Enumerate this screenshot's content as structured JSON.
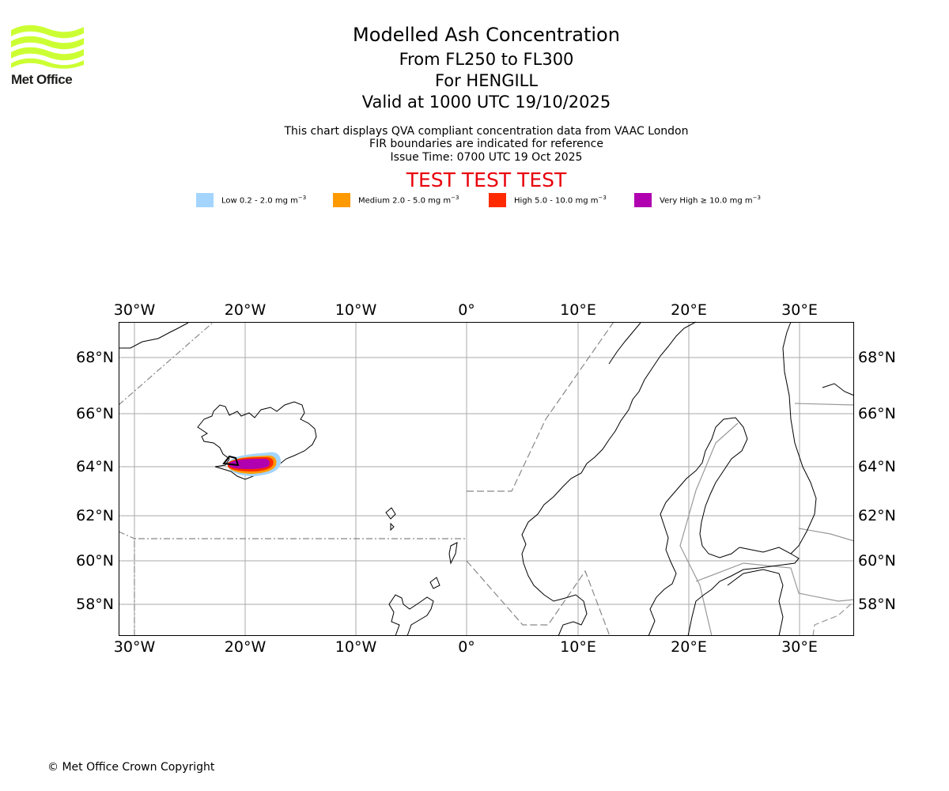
{
  "logo": {
    "text": "Met Office",
    "color": "#ccff33"
  },
  "header": {
    "title": "Modelled Ash Concentration",
    "flight_levels": "From FL250 to FL300",
    "volcano": "For HENGILL",
    "valid": "Valid at 1000 UTC 19/10/2025",
    "note1": "This chart displays QVA compliant concentration data from VAAC London",
    "note2": "FIR boundaries are indicated for reference",
    "issue_time": "Issue Time: 0700 UTC 19 Oct 2025",
    "test_banner": "TEST TEST TEST"
  },
  "legend": [
    {
      "label": "Low 0.2 - 2.0 mg m",
      "exp": "−3",
      "color": "#a3d5ff"
    },
    {
      "label": "Medium 2.0 - 5.0 mg m",
      "exp": "−3",
      "color": "#ff9900"
    },
    {
      "label": "High 5.0 - 10.0 mg m",
      "exp": "−3",
      "color": "#ff2a00"
    },
    {
      "label": "Very High  ≥  10.0 mg m",
      "exp": "−3",
      "color": "#b000b0"
    }
  ],
  "map": {
    "lon_labels": [
      "30°W",
      "20°W",
      "10°W",
      "0°",
      "10°E",
      "20°E",
      "30°E"
    ],
    "lat_labels": [
      "68°N",
      "66°N",
      "64°N",
      "62°N",
      "60°N",
      "58°N"
    ]
  },
  "footer": {
    "copyright": "© Met Office Crown Copyright"
  }
}
